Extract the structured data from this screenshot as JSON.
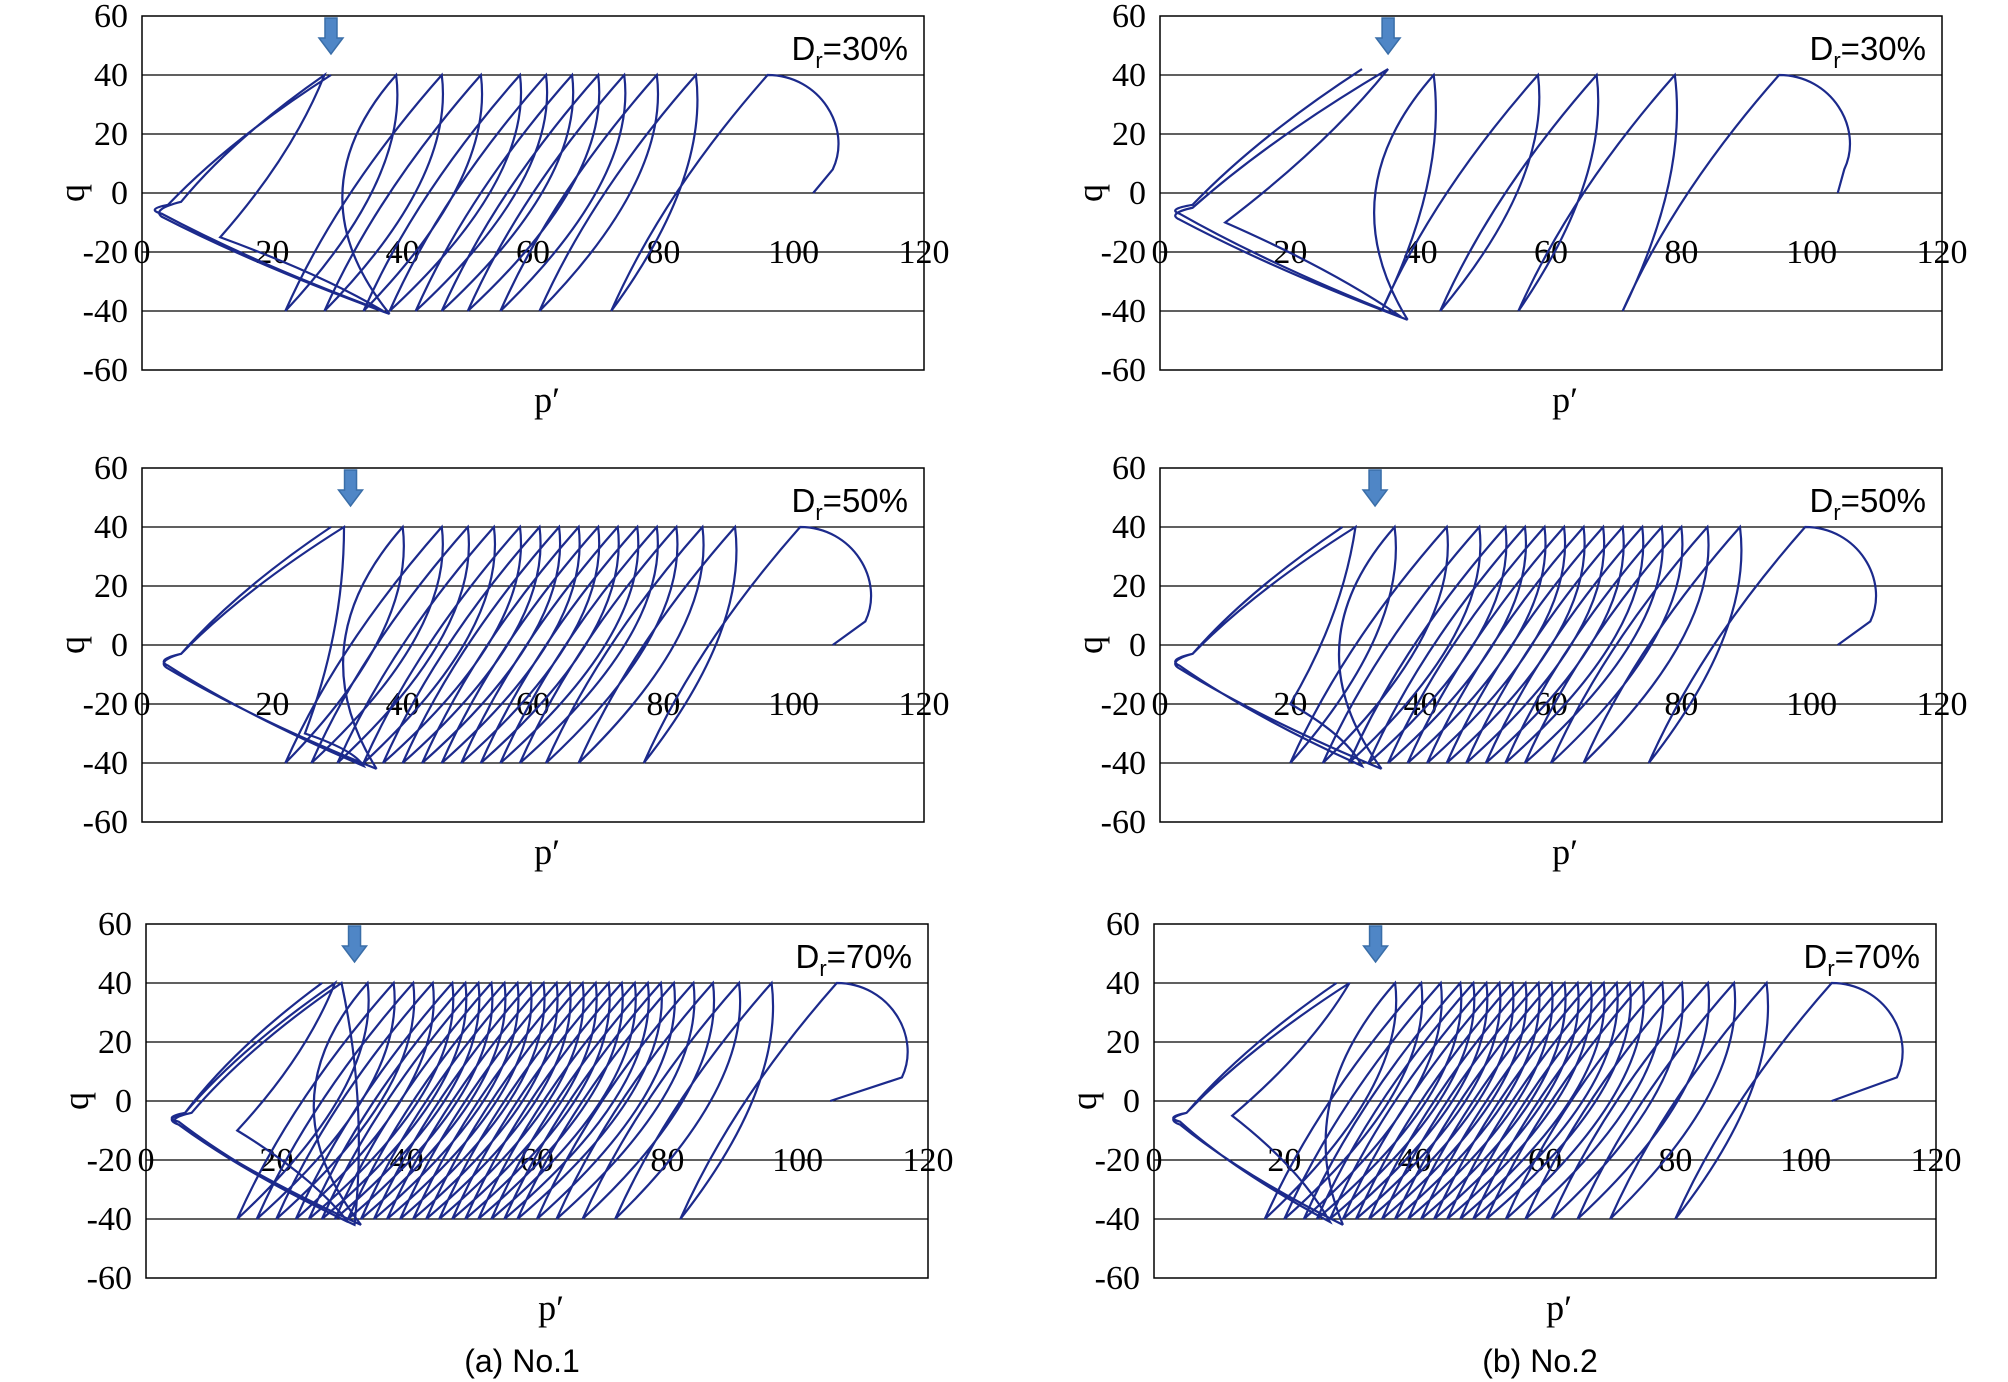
{
  "chart_data": [
    {
      "type": "line",
      "id": "a30",
      "panel": "No.1",
      "annotation": "D",
      "annotation_sub": "r",
      "annotation_rest": "=30%",
      "xlabel": "p′",
      "ylabel": "q",
      "xlim": [
        0,
        120
      ],
      "ylim": [
        -60,
        60
      ],
      "xticks": [
        "0",
        "20",
        "40",
        "60",
        "80",
        "100",
        "120"
      ],
      "yticks": [
        "60",
        "40",
        "20",
        "0",
        "-20",
        "-40",
        "-60"
      ],
      "grid": "horizontal",
      "arrow_at_p": 29,
      "series_color": "#1c2a8c",
      "pre_loops": [
        [
          29,
          40
        ],
        [
          4,
          -4
        ],
        [
          3,
          -7
        ],
        [
          37,
          -40
        ],
        [
          12,
          -15
        ],
        [
          28,
          40
        ],
        [
          6,
          -3
        ],
        [
          3,
          -8
        ],
        [
          38,
          -41
        ]
      ],
      "cycles": [
        [
          39,
          40
        ],
        [
          46,
          40
        ],
        [
          52,
          40
        ],
        [
          58,
          40
        ],
        [
          62,
          40
        ],
        [
          66,
          40
        ],
        [
          70,
          40
        ],
        [
          74,
          40
        ],
        [
          79,
          40
        ],
        [
          85,
          40
        ],
        [
          96,
          40
        ]
      ],
      "tail_p": 103
    },
    {
      "type": "line",
      "id": "b30",
      "panel": "No.2",
      "annotation": "D",
      "annotation_sub": "r",
      "annotation_rest": "=30%",
      "xlabel": "p′",
      "ylabel": "q",
      "xlim": [
        0,
        120
      ],
      "ylim": [
        -60,
        60
      ],
      "xticks": [
        "0",
        "20",
        "40",
        "60",
        "80",
        "100",
        "120"
      ],
      "yticks": [
        "60",
        "40",
        "20",
        "0",
        "-20",
        "-40",
        "-60"
      ],
      "grid": "horizontal",
      "arrow_at_p": 35,
      "series_color": "#1c2a8c",
      "pre_loops": [
        [
          31,
          42
        ],
        [
          5,
          -4
        ],
        [
          3,
          -7
        ],
        [
          37,
          -42
        ],
        [
          10,
          -10
        ],
        [
          35,
          42
        ],
        [
          5,
          -5
        ],
        [
          3,
          -9
        ],
        [
          38,
          -43
        ]
      ],
      "cycles": [
        [
          42,
          40
        ],
        [
          58,
          40
        ],
        [
          67,
          40
        ],
        [
          79,
          40
        ],
        [
          95,
          40
        ]
      ],
      "tail_p": 104
    },
    {
      "type": "line",
      "id": "a50",
      "panel": "No.1",
      "annotation": "D",
      "annotation_sub": "r",
      "annotation_rest": "=50%",
      "xlabel": "p′",
      "ylabel": "q",
      "xlim": [
        0,
        120
      ],
      "ylim": [
        -60,
        60
      ],
      "xticks": [
        "0",
        "20",
        "40",
        "60",
        "80",
        "100",
        "120"
      ],
      "yticks": [
        "60",
        "40",
        "20",
        "0",
        "-20",
        "-40",
        "-60"
      ],
      "grid": "horizontal",
      "arrow_at_p": 32,
      "series_color": "#1c2a8c",
      "pre_loops": [
        [
          29,
          40
        ],
        [
          6,
          -3
        ],
        [
          4,
          -7
        ],
        [
          34,
          -41
        ],
        [
          25,
          -30
        ],
        [
          31,
          40
        ],
        [
          6,
          -3
        ],
        [
          4,
          -8
        ],
        [
          36,
          -42
        ]
      ],
      "cycles": [
        [
          40,
          40
        ],
        [
          46,
          40
        ],
        [
          50,
          40
        ],
        [
          54,
          40
        ],
        [
          58,
          40
        ],
        [
          61,
          40
        ],
        [
          64,
          40
        ],
        [
          67,
          40
        ],
        [
          70,
          40
        ],
        [
          73,
          40
        ],
        [
          76,
          40
        ],
        [
          79,
          40
        ],
        [
          82,
          40
        ],
        [
          86,
          40
        ],
        [
          91,
          40
        ],
        [
          101,
          40
        ]
      ],
      "tail_p": 106
    },
    {
      "type": "line",
      "id": "b50",
      "panel": "No.2",
      "annotation": "D",
      "annotation_sub": "r",
      "annotation_rest": "=50%",
      "xlabel": "p′",
      "ylabel": "q",
      "xlim": [
        0,
        120
      ],
      "ylim": [
        -60,
        60
      ],
      "xticks": [
        "0",
        "20",
        "40",
        "60",
        "80",
        "100",
        "120"
      ],
      "yticks": [
        "60",
        "40",
        "20",
        "0",
        "-20",
        "-40",
        "-60"
      ],
      "grid": "horizontal",
      "arrow_at_p": 33,
      "series_color": "#1c2a8c",
      "pre_loops": [
        [
          28,
          40
        ],
        [
          5,
          -3
        ],
        [
          3,
          -7
        ],
        [
          31,
          -41
        ],
        [
          20,
          -20
        ],
        [
          30,
          40
        ],
        [
          5,
          -3
        ],
        [
          3,
          -8
        ],
        [
          34,
          -42
        ]
      ],
      "cycles": [
        [
          36,
          40
        ],
        [
          44,
          40
        ],
        [
          49,
          40
        ],
        [
          53,
          40
        ],
        [
          56,
          40
        ],
        [
          59,
          40
        ],
        [
          62,
          40
        ],
        [
          65,
          40
        ],
        [
          68,
          40
        ],
        [
          71,
          40
        ],
        [
          74,
          40
        ],
        [
          77,
          40
        ],
        [
          80,
          40
        ],
        [
          84,
          40
        ],
        [
          89,
          40
        ],
        [
          99,
          40
        ]
      ],
      "tail_p": 104
    },
    {
      "type": "line",
      "id": "a70",
      "panel": "No.1",
      "annotation": "D",
      "annotation_sub": "r",
      "annotation_rest": "=70%",
      "xlabel": "p′",
      "ylabel": "q",
      "xlim": [
        0,
        120
      ],
      "ylim": [
        -60,
        60
      ],
      "xticks": [
        "0",
        "20",
        "40",
        "60",
        "80",
        "100",
        "120"
      ],
      "yticks": [
        "60",
        "40",
        "20",
        "0",
        "-20",
        "-40",
        "-60"
      ],
      "grid": "horizontal",
      "arrow_at_p": 32,
      "series_color": "#1c2a8c",
      "pre_loops": [
        [
          27,
          40
        ],
        [
          6,
          -4
        ],
        [
          5,
          -7
        ],
        [
          31,
          -41
        ],
        [
          14,
          -10
        ],
        [
          29,
          40
        ],
        [
          6,
          -4
        ],
        [
          5,
          -8
        ],
        [
          32,
          -42
        ],
        [
          30,
          40
        ],
        [
          7,
          -4
        ],
        [
          5,
          -8
        ],
        [
          33,
          -42
        ]
      ],
      "cycles": [
        [
          34,
          40
        ],
        [
          38,
          40
        ],
        [
          41,
          40
        ],
        [
          44,
          40
        ],
        [
          47,
          40
        ],
        [
          49,
          40
        ],
        [
          51,
          40
        ],
        [
          53,
          40
        ],
        [
          55,
          40
        ],
        [
          57,
          40
        ],
        [
          59,
          40
        ],
        [
          61,
          40
        ],
        [
          63,
          40
        ],
        [
          65,
          40
        ],
        [
          67,
          40
        ],
        [
          69,
          40
        ],
        [
          71,
          40
        ],
        [
          73,
          40
        ],
        [
          75,
          40
        ],
        [
          77,
          40
        ],
        [
          79,
          40
        ],
        [
          81,
          40
        ],
        [
          84,
          40
        ],
        [
          87,
          40
        ],
        [
          91,
          40
        ],
        [
          96,
          40
        ],
        [
          106,
          40
        ]
      ],
      "tail_p": 105
    },
    {
      "type": "line",
      "id": "b70",
      "panel": "No.2",
      "annotation": "D",
      "annotation_sub": "r",
      "annotation_rest": "=70%",
      "xlabel": "p′",
      "ylabel": "q",
      "xlim": [
        0,
        120
      ],
      "ylim": [
        -60,
        60
      ],
      "xticks": [
        "0",
        "20",
        "40",
        "60",
        "80",
        "100",
        "120"
      ],
      "yticks": [
        "60",
        "40",
        "20",
        "0",
        "-20",
        "-40",
        "-60"
      ],
      "grid": "horizontal",
      "arrow_at_p": 34,
      "series_color": "#1c2a8c",
      "pre_loops": [
        [
          28,
          40
        ],
        [
          5,
          -4
        ],
        [
          4,
          -7
        ],
        [
          27,
          -41
        ],
        [
          12,
          -5
        ],
        [
          30,
          40
        ],
        [
          5,
          -4
        ],
        [
          4,
          -8
        ],
        [
          29,
          -42
        ]
      ],
      "cycles": [
        [
          37,
          40
        ],
        [
          41,
          40
        ],
        [
          44,
          40
        ],
        [
          47,
          40
        ],
        [
          49,
          40
        ],
        [
          51,
          40
        ],
        [
          53,
          40
        ],
        [
          55,
          40
        ],
        [
          57,
          40
        ],
        [
          59,
          40
        ],
        [
          61,
          40
        ],
        [
          63,
          40
        ],
        [
          65,
          40
        ],
        [
          67,
          40
        ],
        [
          69,
          40
        ],
        [
          71,
          40
        ],
        [
          73,
          40
        ],
        [
          75,
          40
        ],
        [
          78,
          40
        ],
        [
          81,
          40
        ],
        [
          85,
          40
        ],
        [
          89,
          40
        ],
        [
          94,
          40
        ],
        [
          104,
          40
        ]
      ],
      "tail_p": 104
    }
  ],
  "captions": {
    "left": "(a)  No.1",
    "right": "(b)  No.2"
  },
  "colors": {
    "curve": "#1c2a8c",
    "arrow": "#4f86c6",
    "arrow_stroke": "#3a6ea8",
    "grid": "#000000"
  }
}
